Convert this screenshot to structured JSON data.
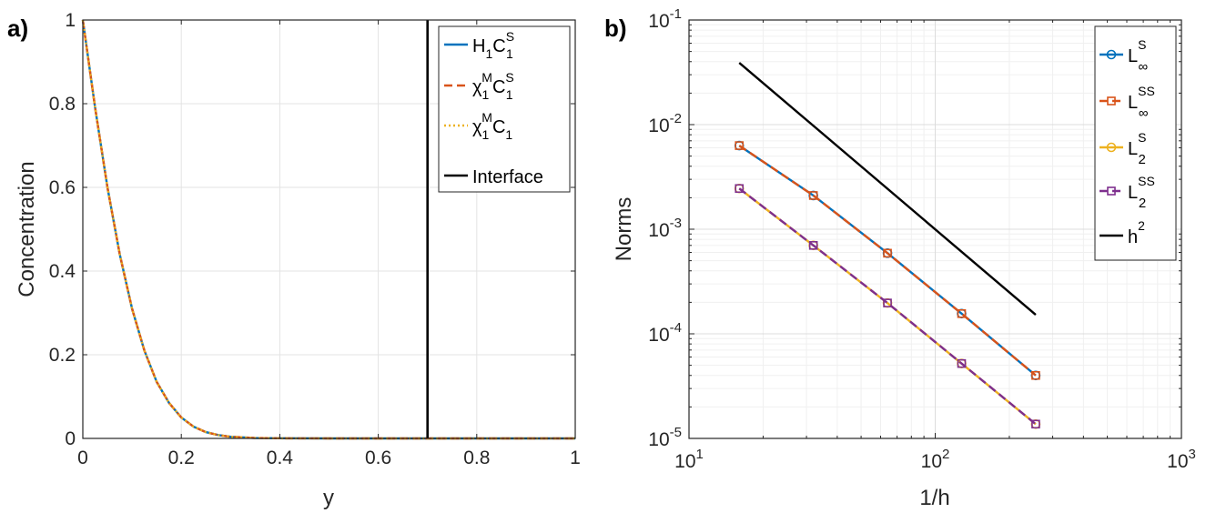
{
  "chart_data": [
    {
      "panel": "a)",
      "type": "line",
      "xlabel": "y",
      "ylabel": "Concentration",
      "xlim": [
        0,
        1
      ],
      "ylim": [
        0,
        1
      ],
      "xticks": [
        0,
        0.2,
        0.4,
        0.6,
        0.8,
        1
      ],
      "xtick_labels": [
        "0",
        "0.2",
        "0.4",
        "0.6",
        "0.8",
        "1"
      ],
      "yticks": [
        0,
        0.2,
        0.4,
        0.6,
        0.8,
        1
      ],
      "ytick_labels": [
        "0",
        "0.2",
        "0.4",
        "0.6",
        "0.8",
        "1"
      ],
      "grid": true,
      "legend_position": "top-right",
      "series": [
        {
          "name": "H1C1S",
          "legend": {
            "base": "H",
            "sub1": "1",
            "mid": "C",
            "sup": "S",
            "sub2": "1"
          },
          "color": "#0072BD",
          "style": "solid",
          "x": [
            0,
            0.025,
            0.05,
            0.075,
            0.1,
            0.125,
            0.15,
            0.175,
            0.2,
            0.225,
            0.25,
            0.275,
            0.3,
            0.35,
            0.4,
            0.5,
            0.6,
            0.7,
            0.8,
            0.9,
            1.0
          ],
          "y": [
            1.0,
            0.79,
            0.6,
            0.44,
            0.31,
            0.21,
            0.135,
            0.085,
            0.05,
            0.028,
            0.015,
            0.008,
            0.004,
            0.001,
            0.0003,
            0,
            0,
            0,
            0,
            0,
            0
          ]
        },
        {
          "name": "χ1MC1S",
          "legend": {
            "base": "χ",
            "sub1": "1",
            "sup1": "M",
            "mid": "C",
            "sup": "S",
            "sub2": "1"
          },
          "color": "#D95319",
          "style": "dashed",
          "x": [
            0,
            0.025,
            0.05,
            0.075,
            0.1,
            0.125,
            0.15,
            0.175,
            0.2,
            0.225,
            0.25,
            0.275,
            0.3,
            0.35,
            0.4,
            0.5,
            0.6,
            0.7,
            0.8,
            0.9,
            1.0
          ],
          "y": [
            1.0,
            0.79,
            0.6,
            0.44,
            0.31,
            0.21,
            0.135,
            0.085,
            0.05,
            0.028,
            0.015,
            0.008,
            0.004,
            0.001,
            0.0003,
            0,
            0,
            0,
            0,
            0,
            0
          ]
        },
        {
          "name": "χ1MC1",
          "legend": {
            "base": "χ",
            "sub1": "1",
            "sup1": "M",
            "mid": "C",
            "sub2": "1"
          },
          "color": "#EDB120",
          "style": "dotted",
          "x": [
            0,
            0.025,
            0.05,
            0.075,
            0.1,
            0.125,
            0.15,
            0.175,
            0.2,
            0.225,
            0.25,
            0.275,
            0.3,
            0.35,
            0.4,
            0.5,
            0.6,
            0.7,
            0.8,
            0.9,
            1.0
          ],
          "y": [
            1.0,
            0.79,
            0.6,
            0.44,
            0.31,
            0.21,
            0.135,
            0.085,
            0.05,
            0.028,
            0.015,
            0.008,
            0.004,
            0.001,
            0.0003,
            0,
            0,
            0,
            0,
            0,
            0
          ]
        },
        {
          "name": "Interface",
          "legend": {
            "text": "Interface"
          },
          "color": "#000000",
          "style": "solid",
          "x": [
            0.7,
            0.7
          ],
          "y": [
            0,
            1
          ]
        }
      ]
    },
    {
      "panel": "b)",
      "type": "line",
      "xscale": "log",
      "yscale": "log",
      "xlabel": "1/h",
      "ylabel": "Norms",
      "xlim": [
        10,
        1000
      ],
      "ylim": [
        1e-05,
        0.1
      ],
      "xtick_labels": [
        {
          "base": "10",
          "exp": "1"
        },
        {
          "base": "10",
          "exp": "2"
        },
        {
          "base": "10",
          "exp": "3"
        }
      ],
      "ytick_labels": [
        {
          "base": "10",
          "exp": "-5"
        },
        {
          "base": "10",
          "exp": "-4"
        },
        {
          "base": "10",
          "exp": "-3"
        },
        {
          "base": "10",
          "exp": "-2"
        },
        {
          "base": "10",
          "exp": "-1"
        }
      ],
      "grid": true,
      "legend_position": "top-right",
      "x": [
        16,
        32,
        64,
        128,
        256
      ],
      "series": [
        {
          "name": "L∞S",
          "legend": {
            "base": "L",
            "sup": "S",
            "sub": "∞"
          },
          "color": "#0072BD",
          "style": "solid",
          "marker": "circle",
          "values": [
            0.0063,
            0.0021,
            0.00059,
            0.000156,
            4e-05
          ]
        },
        {
          "name": "L∞SS",
          "legend": {
            "base": "L",
            "sup": "SS",
            "sub": "∞"
          },
          "color": "#D95319",
          "style": "dashed",
          "marker": "square",
          "values": [
            0.0063,
            0.0021,
            0.00059,
            0.000156,
            4e-05
          ]
        },
        {
          "name": "L2S",
          "legend": {
            "base": "L",
            "sup": "S",
            "sub": "2"
          },
          "color": "#EDB120",
          "style": "solid",
          "marker": "circle",
          "values": [
            0.00245,
            0.0007,
            0.000197,
            5.2e-05,
            1.37e-05
          ]
        },
        {
          "name": "L2SS",
          "legend": {
            "base": "L",
            "sup": "SS",
            "sub": "2"
          },
          "color": "#7E2F8E",
          "style": "dashed",
          "marker": "square",
          "values": [
            0.00245,
            0.0007,
            0.000197,
            5.2e-05,
            1.37e-05
          ]
        },
        {
          "name": "h2",
          "legend": {
            "base": "h",
            "sup": "2"
          },
          "color": "#000000",
          "style": "solid",
          "marker": "none",
          "x": [
            16,
            256
          ],
          "values": [
            0.039,
            0.000152
          ]
        }
      ]
    }
  ]
}
